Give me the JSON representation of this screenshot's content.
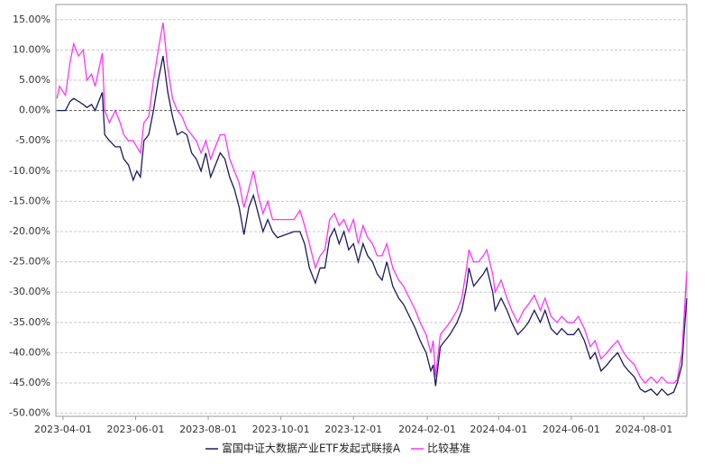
{
  "chart_data": {
    "type": "line",
    "x": [
      "2023-03-27",
      "2023-03-29",
      "2023-04-03",
      "2023-04-07",
      "2023-04-10",
      "2023-04-14",
      "2023-04-18",
      "2023-04-21",
      "2023-04-25",
      "2023-04-28",
      "2023-05-04",
      "2023-05-06",
      "2023-05-10",
      "2023-05-15",
      "2023-05-19",
      "2023-05-22",
      "2023-05-26",
      "2023-05-30",
      "2023-06-02",
      "2023-06-05",
      "2023-06-08",
      "2023-06-12",
      "2023-06-16",
      "2023-06-20",
      "2023-06-24",
      "2023-06-28",
      "2023-07-02",
      "2023-07-06",
      "2023-07-10",
      "2023-07-14",
      "2023-07-18",
      "2023-07-22",
      "2023-07-26",
      "2023-07-30",
      "2023-08-03",
      "2023-08-07",
      "2023-08-11",
      "2023-08-15",
      "2023-08-19",
      "2023-08-23",
      "2023-08-27",
      "2023-08-31",
      "2023-09-04",
      "2023-09-08",
      "2023-09-12",
      "2023-09-16",
      "2023-09-20",
      "2023-09-24",
      "2023-09-28",
      "2023-10-05",
      "2023-10-12",
      "2023-10-17",
      "2023-10-21",
      "2023-10-25",
      "2023-10-30",
      "2023-11-03",
      "2023-11-07",
      "2023-11-11",
      "2023-11-15",
      "2023-11-19",
      "2023-11-23",
      "2023-11-27",
      "2023-12-01",
      "2023-12-05",
      "2023-12-09",
      "2023-12-13",
      "2023-12-17",
      "2023-12-21",
      "2023-12-25",
      "2023-12-29",
      "2024-01-03",
      "2024-01-08",
      "2024-01-12",
      "2024-01-17",
      "2024-01-22",
      "2024-01-26",
      "2024-01-31",
      "2024-02-04",
      "2024-02-06",
      "2024-02-08",
      "2024-02-12",
      "2024-02-20",
      "2024-02-26",
      "2024-03-01",
      "2024-03-05",
      "2024-03-07",
      "2024-03-11",
      "2024-03-15",
      "2024-03-19",
      "2024-03-22",
      "2024-03-27",
      "2024-03-29",
      "2024-04-03",
      "2024-04-08",
      "2024-04-12",
      "2024-04-17",
      "2024-04-22",
      "2024-04-26",
      "2024-05-01",
      "2024-05-06",
      "2024-05-10",
      "2024-05-15",
      "2024-05-20",
      "2024-05-24",
      "2024-05-29",
      "2024-06-03",
      "2024-06-07",
      "2024-06-12",
      "2024-06-17",
      "2024-06-21",
      "2024-06-26",
      "2024-07-01",
      "2024-07-05",
      "2024-07-10",
      "2024-07-15",
      "2024-07-19",
      "2024-07-24",
      "2024-07-29",
      "2024-08-02",
      "2024-08-07",
      "2024-08-12",
      "2024-08-16",
      "2024-08-21",
      "2024-08-26",
      "2024-08-29",
      "2024-09-02",
      "2024-09-04",
      "2024-09-06"
    ],
    "series": [
      {
        "name": "富国中证大数据产业ETF发起式联接A",
        "color": "#1a1a5e",
        "values": [
          0,
          0,
          0,
          1.5,
          2,
          1.5,
          1,
          0.5,
          1,
          0,
          3,
          -4,
          -5,
          -6,
          -6,
          -8,
          -9,
          -11.5,
          -10,
          -11,
          -5,
          -4,
          0,
          5,
          9,
          3,
          -1,
          -4,
          -3.5,
          -4,
          -7,
          -8,
          -10,
          -7,
          -11,
          -9,
          -7,
          -8,
          -11,
          -13,
          -16,
          -20.5,
          -16,
          -14,
          -17,
          -20,
          -18,
          -20,
          -21,
          -20.5,
          -20,
          -20,
          -22,
          -26,
          -28.5,
          -26,
          -26,
          -21,
          -19.5,
          -22,
          -20,
          -23,
          -22,
          -25,
          -22,
          -24,
          -25,
          -27,
          -28,
          -25,
          -29,
          -31,
          -32,
          -34,
          -36,
          -38,
          -40,
          -43,
          -42,
          -45.5,
          -39,
          -37,
          -35,
          -33,
          -29,
          -26,
          -29,
          -28,
          -27,
          -26,
          -30,
          -33,
          -31,
          -33,
          -35,
          -37,
          -36,
          -35,
          -33,
          -35,
          -33,
          -36,
          -37,
          -36,
          -37,
          -37,
          -36,
          -38,
          -41,
          -40,
          -43,
          -42,
          -41,
          -40,
          -42,
          -43,
          -44,
          -46,
          -46.5,
          -46,
          -47,
          -46,
          -47,
          -46.5,
          -45,
          -42,
          -36,
          -31
        ]
      },
      {
        "name": "比较基准",
        "color": "#ff33ff",
        "values": [
          2,
          4,
          2.5,
          8,
          11,
          9,
          10,
          5,
          6,
          4,
          9.5,
          0,
          -2,
          0,
          -2,
          -4,
          -5,
          -5,
          -6,
          -7,
          -2,
          -1,
          5,
          10,
          14.5,
          7,
          2,
          0,
          -1,
          -3,
          -4,
          -5,
          -7,
          -5,
          -8,
          -6,
          -4,
          -4,
          -8,
          -10,
          -12,
          -16,
          -13,
          -10,
          -14,
          -17,
          -15,
          -18,
          -18,
          -18,
          -18,
          -16.5,
          -19,
          -22,
          -26,
          -24,
          -23,
          -18,
          -17,
          -19,
          -18,
          -20,
          -18,
          -22,
          -19,
          -21,
          -22,
          -24,
          -24,
          -22,
          -26,
          -28,
          -29,
          -31,
          -33,
          -35,
          -37,
          -40,
          -38,
          -44,
          -37,
          -35,
          -33,
          -31,
          -26,
          -23,
          -25,
          -25,
          -24,
          -23,
          -27,
          -30,
          -28,
          -31,
          -33,
          -35,
          -33,
          -32,
          -30.5,
          -33,
          -31,
          -34,
          -35,
          -34,
          -35,
          -35,
          -34,
          -36,
          -39,
          -38,
          -41,
          -40,
          -39,
          -38,
          -40,
          -41,
          -42,
          -44,
          -45,
          -44,
          -45,
          -44,
          -45,
          -45,
          -44.5,
          -40,
          -33,
          -26.5
        ]
      }
    ],
    "xlim": [
      "2023-03-26",
      "2024-09-06"
    ],
    "xticks": [
      "2023-04-01",
      "2023-06-01",
      "2023-08-01",
      "2023-10-01",
      "2023-12-01",
      "2024-02-01",
      "2024-04-01",
      "2024-06-01",
      "2024-08-01"
    ],
    "ylim": [
      -50.5,
      17.5
    ],
    "yticks": [
      {
        "value": 15,
        "label": "15.00%"
      },
      {
        "value": 10,
        "label": "10.00%"
      },
      {
        "value": 5,
        "label": "5.00%"
      },
      {
        "value": 0,
        "label": "0.00%"
      },
      {
        "value": -5,
        "label": "-5.00%"
      },
      {
        "value": -10,
        "label": "-10.00%"
      },
      {
        "value": -15,
        "label": "-15.00%"
      },
      {
        "value": -20,
        "label": "-20.00%"
      },
      {
        "value": -25,
        "label": "-25.00%"
      },
      {
        "value": -30,
        "label": "-30.00%"
      },
      {
        "value": -35,
        "label": "-35.00%"
      },
      {
        "value": -40,
        "label": "-40.00%"
      },
      {
        "value": -45,
        "label": "-45.00%"
      },
      {
        "value": -50,
        "label": "-50.00%"
      }
    ],
    "grid": true,
    "legend": "bottom"
  }
}
